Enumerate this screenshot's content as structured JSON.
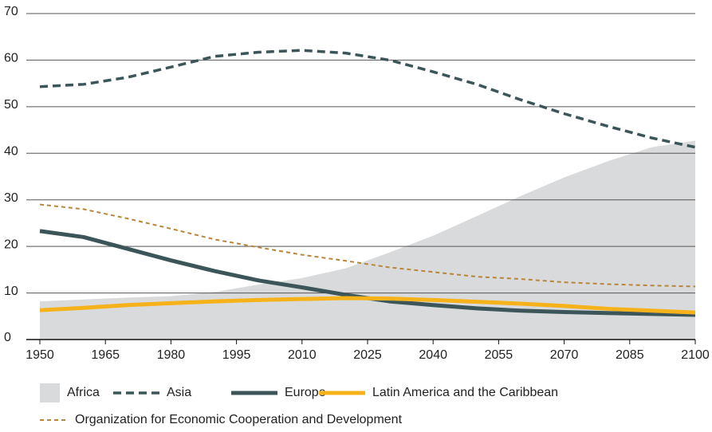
{
  "chart_data": {
    "type": "line",
    "x": [
      1950,
      1960,
      1970,
      1980,
      1990,
      2000,
      2010,
      2020,
      2030,
      2040,
      2050,
      2060,
      2070,
      2080,
      2090,
      2100
    ],
    "series": [
      {
        "name": "Africa",
        "color": "#d9dadb",
        "style": "area",
        "values": [
          8.2,
          8.6,
          9.0,
          9.3,
          10.2,
          11.8,
          13.2,
          15.3,
          18.7,
          22.3,
          26.5,
          30.8,
          34.8,
          38.3,
          41.3,
          42.7
        ]
      },
      {
        "name": "Asia",
        "color": "#3c5558",
        "style": "dashed",
        "values": [
          54.3,
          54.8,
          56.3,
          58.5,
          60.8,
          61.7,
          62.1,
          61.5,
          60.0,
          57.5,
          54.8,
          51.5,
          48.5,
          45.8,
          43.3,
          41.3
        ]
      },
      {
        "name": "Europe",
        "color": "#3c5558",
        "style": "thick",
        "values": [
          23.3,
          22.0,
          19.5,
          17.0,
          14.7,
          12.7,
          11.2,
          9.6,
          8.2,
          7.4,
          6.7,
          6.2,
          5.9,
          5.7,
          5.5,
          5.3
        ]
      },
      {
        "name": "Latin America and the Caribbean",
        "color": "#f5b21b",
        "style": "thick",
        "values": [
          6.3,
          6.8,
          7.4,
          7.8,
          8.2,
          8.5,
          8.7,
          8.9,
          8.8,
          8.5,
          8.1,
          7.7,
          7.2,
          6.6,
          6.2,
          5.8
        ]
      },
      {
        "name": "Organization for Economic Cooperation and Development",
        "color": "#b8863a",
        "style": "dotted",
        "values": [
          29.0,
          28.0,
          26.0,
          23.8,
          21.5,
          19.8,
          18.2,
          16.9,
          15.5,
          14.5,
          13.5,
          13.0,
          12.3,
          11.9,
          11.6,
          11.4
        ]
      }
    ],
    "xlim": [
      1950,
      2100
    ],
    "xticks": [
      1950,
      1965,
      1980,
      1995,
      2010,
      2025,
      2040,
      2055,
      2070,
      2085,
      2100
    ],
    "ylim": [
      0,
      70
    ],
    "yticks": [
      0,
      10,
      20,
      30,
      40,
      50,
      60,
      70
    ],
    "grid": true
  }
}
